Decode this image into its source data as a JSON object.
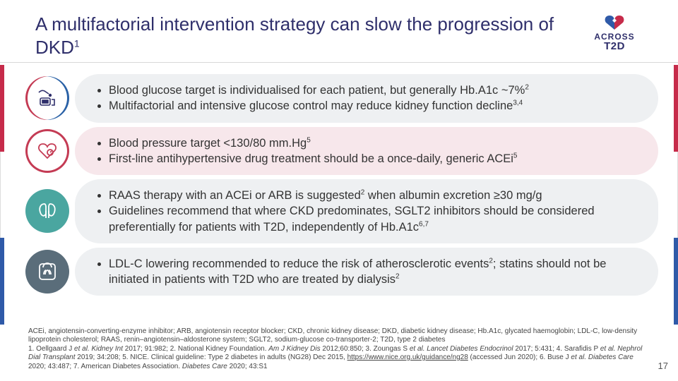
{
  "title_html": "A multifactorial intervention strategy can slow the progression of DKD<sup>1</sup>",
  "logo": {
    "line1": "ACROSS",
    "line2": "T2D"
  },
  "rows": [
    {
      "bg": "#eef0f2",
      "icon_color": "#2f2f6b",
      "bullets_html": [
        "Blood glucose target is individualised for each patient, but generally Hb.A1c ~7%<sup>2</sup>",
        "Multifactorial and intensive glucose control may reduce kidney function decline<sup>3,4</sup>"
      ]
    },
    {
      "bg": "#f7e7eb",
      "icon_color": "#c43b54",
      "bullets_html": [
        "Blood pressure target <130/80 mm.Hg<sup>5</sup>",
        "First-line antihypertensive drug treatment should be a once-daily, generic ACEi<sup>5</sup>"
      ]
    },
    {
      "bg": "#eef0f2",
      "icon_color": "#ffffff",
      "bullets_html": [
        "RAAS therapy with an ACEi or ARB is suggested<sup>2</sup> when albumin excretion ≥30 mg/g",
        "Guidelines recommend that where CKD predominates, SGLT2 inhibitors should be considered preferentially for patients with T2D, independently of Hb.A1c<sup>6,7</sup>"
      ]
    },
    {
      "bg": "#eef0f2",
      "icon_color": "#ffffff",
      "bullets_html": [
        "LDL-C lowering recommended to reduce the risk of atherosclerotic events<sup>2</sup>; statins should not be initiated in patients with T2D who are treated by dialysis<sup>2</sup>"
      ]
    }
  ],
  "footer_html": "ACEi, angiotensin-converting-enzyme inhibitor; ARB, angiotensin receptor blocker; CKD, chronic kidney disease; DKD, diabetic kidney disease; Hb.A1c, glycated haemoglobin; LDL-C, low-density lipoprotein cholesterol; RAAS, renin–angiotensin–aldosterone system; SGLT2, sodium-glucose co-transporter-2; T2D, type 2 diabetes<br>1. Oellgaard J <i>et al. Kidney Int</i> 2017; 91:982; 2. National Kidney Foundation. <i>Am J Kidney Dis</i> 2012;60:850; 3. Zoungas S <i>et al. Lancet Diabetes Endocrinol</i> 2017; 5:431; 4. Sarafidis P <i>et al. Nephrol Dial Transplant</i> 2019; 34:208; 5. NICE. Clinical guideline: Type 2 diabetes in adults (NG28) Dec 2015, <a href='#'>https://www.nice.org.uk/guidance/ng28</a> (accessed Jun 2020); 6. Buse J <i>et al. Diabetes Care</i> 2020; 43:487; 7. American Diabetes Association. <i>Diabetes Care</i> 2020; 43:S1",
  "page_number": "17",
  "colors": {
    "title": "#2f2f6b",
    "accent_red": "#c62b4a",
    "accent_blue": "#2f5aa8",
    "teal": "#4aa6a0",
    "slate": "#5a6d7a"
  }
}
